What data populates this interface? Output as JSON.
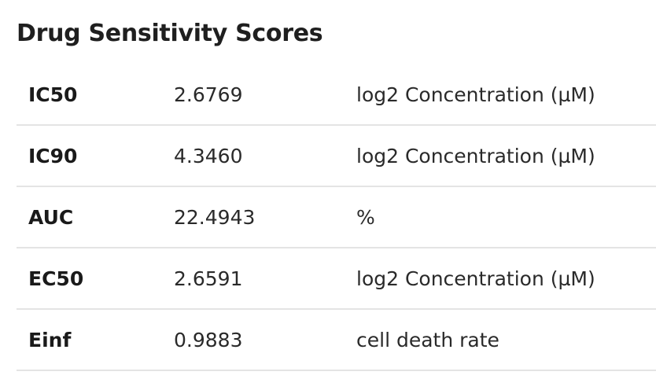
{
  "title": "Drug Sensitivity Scores",
  "rows": [
    {
      "name": "IC50",
      "value": "2.6769",
      "unit": "log2 Concentration (µM)"
    },
    {
      "name": "IC90",
      "value": "4.3460",
      "unit": "log2 Concentration (µM)"
    },
    {
      "name": "AUC",
      "value": "22.4943",
      "unit": "%"
    },
    {
      "name": "EC50",
      "value": "2.6591",
      "unit": "log2 Concentration (µM)"
    },
    {
      "name": "Einf",
      "value": "0.9883",
      "unit": "cell death rate"
    }
  ]
}
